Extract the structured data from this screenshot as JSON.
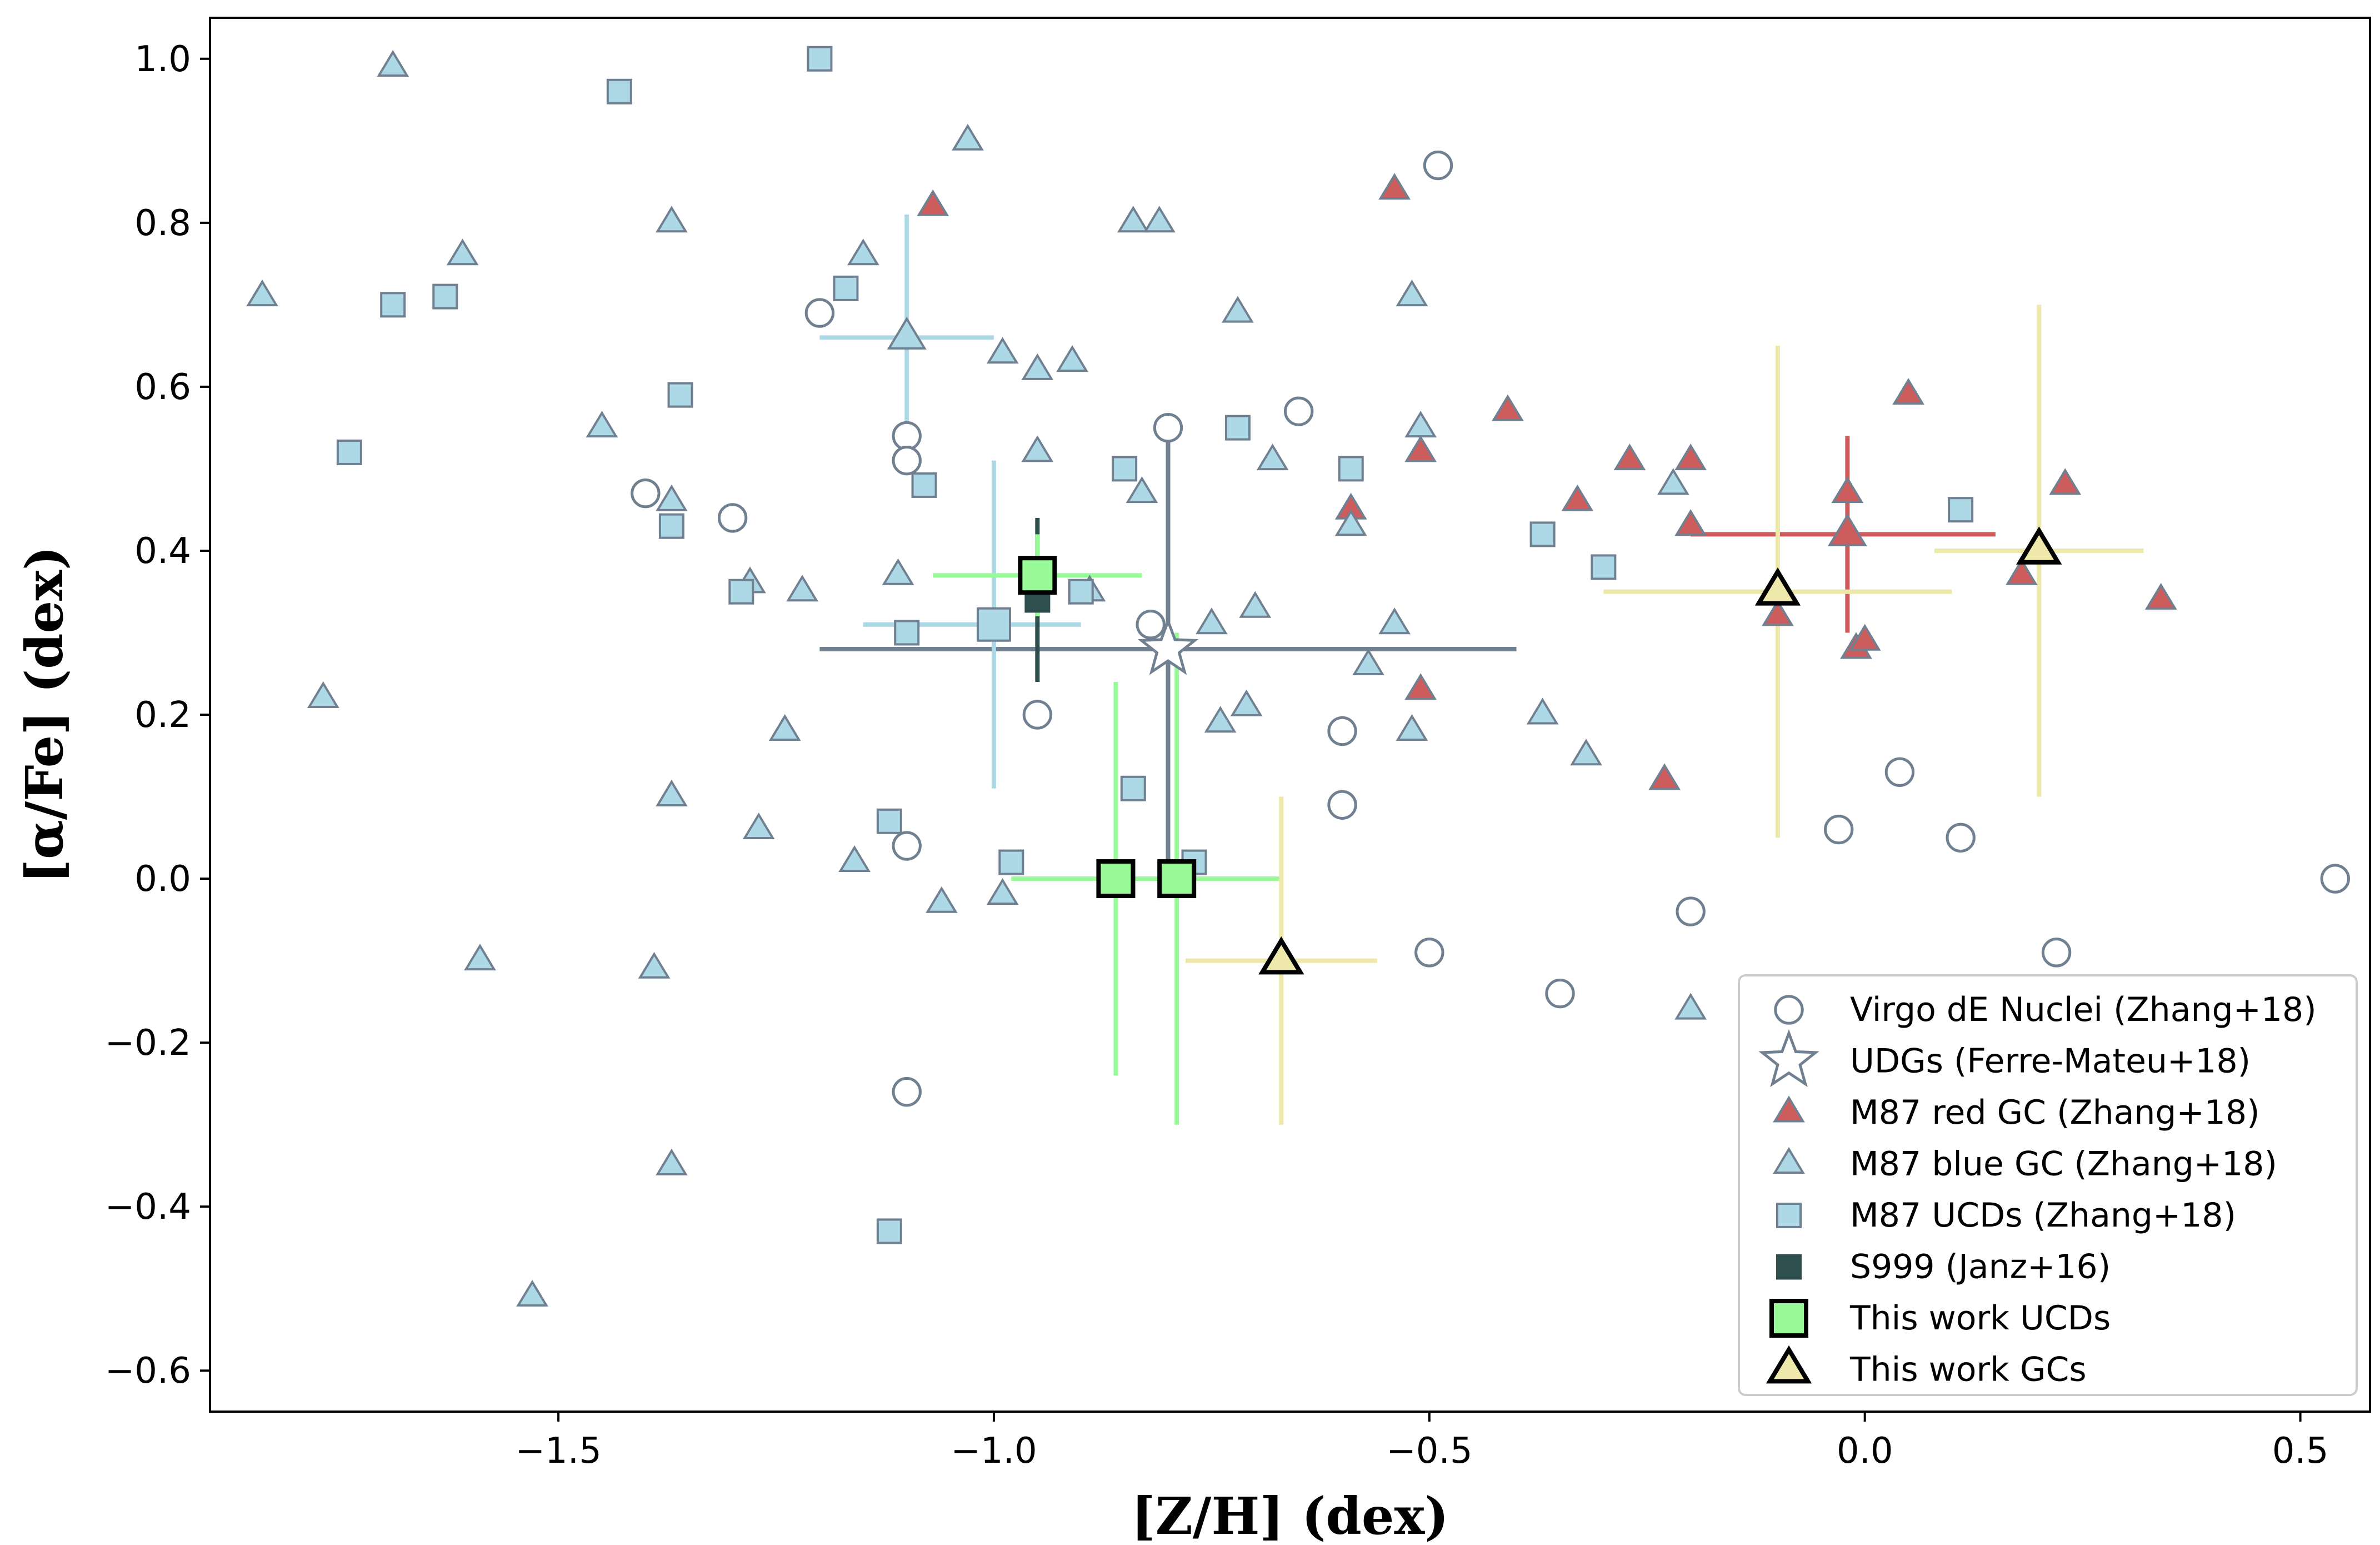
{
  "chart_data": {
    "type": "scatter",
    "title": "",
    "xlabel": "[Z/H] (dex)",
    "ylabel": "[α/Fe] (dex)",
    "xlim": [
      -1.9,
      0.58
    ],
    "ylim": [
      -0.65,
      1.05
    ],
    "x_ticks": [
      -1.5,
      -1.0,
      -0.5,
      0.0,
      0.5
    ],
    "x_tick_labels": [
      "−1.5",
      "−1.0",
      "−0.5",
      "0.0",
      "0.5"
    ],
    "y_ticks": [
      -0.6,
      -0.4,
      -0.2,
      0.0,
      0.2,
      0.4,
      0.6,
      0.8,
      1.0
    ],
    "y_tick_labels": [
      "−0.6",
      "−0.4",
      "−0.2",
      "0.0",
      "0.2",
      "0.4",
      "0.6",
      "0.8",
      "1.0"
    ],
    "grid": false,
    "legend_position": "lower-right",
    "series": [
      {
        "name": "Virgo dE Nuclei (Zhang+18)",
        "marker": "circle",
        "face_color": "#ffffff",
        "edge_color": "#708090",
        "points": [
          [
            -1.2,
            0.69
          ],
          [
            -1.1,
            0.54
          ],
          [
            -1.1,
            0.51
          ],
          [
            -1.4,
            0.47
          ],
          [
            -1.3,
            0.44
          ],
          [
            -0.8,
            0.55
          ],
          [
            -0.65,
            0.57
          ],
          [
            -0.49,
            0.87
          ],
          [
            -0.82,
            0.31
          ],
          [
            -0.95,
            0.2
          ],
          [
            -1.1,
            0.04
          ],
          [
            -0.6,
            0.18
          ],
          [
            -0.6,
            0.09
          ],
          [
            -1.1,
            -0.26
          ],
          [
            -0.5,
            -0.09
          ],
          [
            -0.35,
            -0.14
          ],
          [
            -0.2,
            -0.04
          ],
          [
            -0.03,
            0.06
          ],
          [
            0.04,
            0.13
          ],
          [
            0.11,
            0.05
          ],
          [
            0.22,
            -0.09
          ],
          [
            0.54,
            0.0
          ]
        ]
      },
      {
        "name": "UDGs (Ferre-Mateu+18)",
        "marker": "star",
        "face_color": "#ffffff",
        "edge_color": "#708090",
        "points": [
          [
            -0.8,
            0.28
          ]
        ],
        "errors": [
          {
            "xerr": [
              0.4,
              0.4
            ],
            "yerr": [
              0.27,
              0.27
            ],
            "color": "#708090"
          }
        ]
      },
      {
        "name": "M87 red GC (Zhang+18)",
        "marker": "triangle",
        "face_color": "#cd5c5c",
        "edge_color": "#708090",
        "points": [
          [
            -1.07,
            0.82
          ],
          [
            -0.54,
            0.84
          ],
          [
            -0.41,
            0.57
          ],
          [
            -0.51,
            0.52
          ],
          [
            -0.59,
            0.45
          ],
          [
            -0.33,
            0.46
          ],
          [
            -0.27,
            0.51
          ],
          [
            -0.2,
            0.51
          ],
          [
            -0.2,
            0.43
          ],
          [
            0.05,
            0.59
          ],
          [
            -0.02,
            0.47
          ],
          [
            -0.02,
            0.42
          ],
          [
            -0.1,
            0.32
          ],
          [
            -0.01,
            0.28
          ],
          [
            0.0,
            0.29
          ],
          [
            0.18,
            0.37
          ],
          [
            0.23,
            0.48
          ],
          [
            0.34,
            0.34
          ],
          [
            -0.51,
            0.23
          ],
          [
            -0.23,
            0.12
          ]
        ],
        "errors": [
          {
            "point_index": 11,
            "xerr": [
              0.18,
              0.17
            ],
            "yerr": [
              0.12,
              0.12
            ],
            "color": "#cd5c5c"
          }
        ]
      },
      {
        "name": "M87 blue GC (Zhang+18)",
        "marker": "triangle",
        "face_color": "#add8e6",
        "edge_color": "#708090",
        "points": [
          [
            -1.84,
            0.71
          ],
          [
            -1.69,
            0.99
          ],
          [
            -1.61,
            0.76
          ],
          [
            -1.37,
            0.8
          ],
          [
            -1.45,
            0.55
          ],
          [
            -1.37,
            0.46
          ],
          [
            -1.28,
            0.36
          ],
          [
            -1.22,
            0.35
          ],
          [
            -1.11,
            0.37
          ],
          [
            -1.15,
            0.76
          ],
          [
            -1.03,
            0.9
          ],
          [
            -0.99,
            0.64
          ],
          [
            -0.95,
            0.62
          ],
          [
            -0.91,
            0.63
          ],
          [
            -0.95,
            0.52
          ],
          [
            -0.84,
            0.8
          ],
          [
            -0.81,
            0.8
          ],
          [
            -0.72,
            0.69
          ],
          [
            -0.83,
            0.47
          ],
          [
            -0.68,
            0.51
          ],
          [
            -0.52,
            0.71
          ],
          [
            -0.51,
            0.55
          ],
          [
            -0.59,
            0.43
          ],
          [
            -0.89,
            0.35
          ],
          [
            -0.75,
            0.31
          ],
          [
            -0.7,
            0.33
          ],
          [
            -0.57,
            0.26
          ],
          [
            -0.54,
            0.31
          ],
          [
            -0.74,
            0.19
          ],
          [
            -0.71,
            0.21
          ],
          [
            -0.52,
            0.18
          ],
          [
            -0.37,
            0.2
          ],
          [
            -0.32,
            0.15
          ],
          [
            -1.77,
            0.22
          ],
          [
            -1.24,
            0.18
          ],
          [
            -1.37,
            0.1
          ],
          [
            -1.27,
            0.06
          ],
          [
            -1.16,
            0.02
          ],
          [
            -1.06,
            -0.03
          ],
          [
            -0.99,
            -0.02
          ],
          [
            -1.59,
            -0.1
          ],
          [
            -1.39,
            -0.11
          ],
          [
            -1.37,
            -0.35
          ],
          [
            -1.53,
            -0.51
          ],
          [
            -0.2,
            -0.16
          ],
          [
            -0.22,
            0.48
          ],
          [
            -1.1,
            0.66
          ]
        ],
        "errors": [
          {
            "point_index": 46,
            "xerr": [
              0.1,
              0.1
            ],
            "yerr": [
              0.15,
              0.15
            ],
            "color": "#add8e6"
          }
        ]
      },
      {
        "name": "M87 UCDs (Zhang+18)",
        "marker": "square",
        "face_color": "#add8e6",
        "edge_color": "#708090",
        "points": [
          [
            -1.2,
            1.0
          ],
          [
            -1.43,
            0.96
          ],
          [
            -1.69,
            0.7
          ],
          [
            -1.63,
            0.71
          ],
          [
            -1.17,
            0.72
          ],
          [
            -1.74,
            0.52
          ],
          [
            -1.36,
            0.59
          ],
          [
            -1.37,
            0.43
          ],
          [
            -1.29,
            0.35
          ],
          [
            -1.1,
            0.3
          ],
          [
            -1.08,
            0.48
          ],
          [
            -0.85,
            0.5
          ],
          [
            -0.9,
            0.35
          ],
          [
            -0.72,
            0.55
          ],
          [
            -0.59,
            0.5
          ],
          [
            -0.37,
            0.42
          ],
          [
            -0.3,
            0.38
          ],
          [
            0.11,
            0.45
          ],
          [
            -0.84,
            0.11
          ],
          [
            -1.12,
            0.07
          ],
          [
            -0.98,
            0.02
          ],
          [
            -0.77,
            0.02
          ],
          [
            -1.12,
            -0.43
          ],
          [
            -1.0,
            0.31
          ]
        ],
        "errors": [
          {
            "point_index": 23,
            "xerr": [
              0.15,
              0.1
            ],
            "yerr": [
              0.2,
              0.2
            ],
            "color": "#add8e6"
          }
        ]
      },
      {
        "name": "S999 (Janz+16)",
        "marker": "square",
        "face_color": "#2f4f4f",
        "edge_color": "#2f4f4f",
        "points": [
          [
            -0.95,
            0.34
          ]
        ],
        "errors": [
          {
            "xerr": [
              0.0,
              0.0
            ],
            "yerr": [
              0.1,
              0.1
            ],
            "color": "#2f4f4f"
          }
        ]
      },
      {
        "name": "This work UCDs",
        "marker": "square",
        "face_color": "#98fb98",
        "edge_color": "#000000",
        "points": [
          [
            -0.95,
            0.37
          ],
          [
            -0.86,
            0.0
          ],
          [
            -0.79,
            0.0
          ]
        ],
        "errors": [
          {
            "xerr": [
              0.12,
              0.12
            ],
            "yerr": [
              0.05,
              0.05
            ],
            "color": "#98fb98"
          },
          {
            "xerr": [
              0.12,
              0.12
            ],
            "yerr": [
              0.24,
              0.24
            ],
            "color": "#98fb98"
          },
          {
            "xerr": [
              0.12,
              0.12
            ],
            "yerr": [
              0.3,
              0.3
            ],
            "color": "#98fb98"
          }
        ]
      },
      {
        "name": "This work GCs",
        "marker": "triangle",
        "face_color": "#eee8aa",
        "edge_color": "#000000",
        "points": [
          [
            -0.1,
            0.35
          ],
          [
            0.2,
            0.4
          ],
          [
            -0.67,
            -0.1
          ]
        ],
        "errors": [
          {
            "xerr": [
              0.2,
              0.2
            ],
            "yerr": [
              0.3,
              0.3
            ],
            "color": "#eee8aa"
          },
          {
            "xerr": [
              0.12,
              0.12
            ],
            "yerr": [
              0.3,
              0.3
            ],
            "color": "#eee8aa"
          },
          {
            "xerr": [
              0.11,
              0.11
            ],
            "yerr": [
              0.2,
              0.2
            ],
            "color": "#eee8aa"
          }
        ]
      }
    ]
  }
}
